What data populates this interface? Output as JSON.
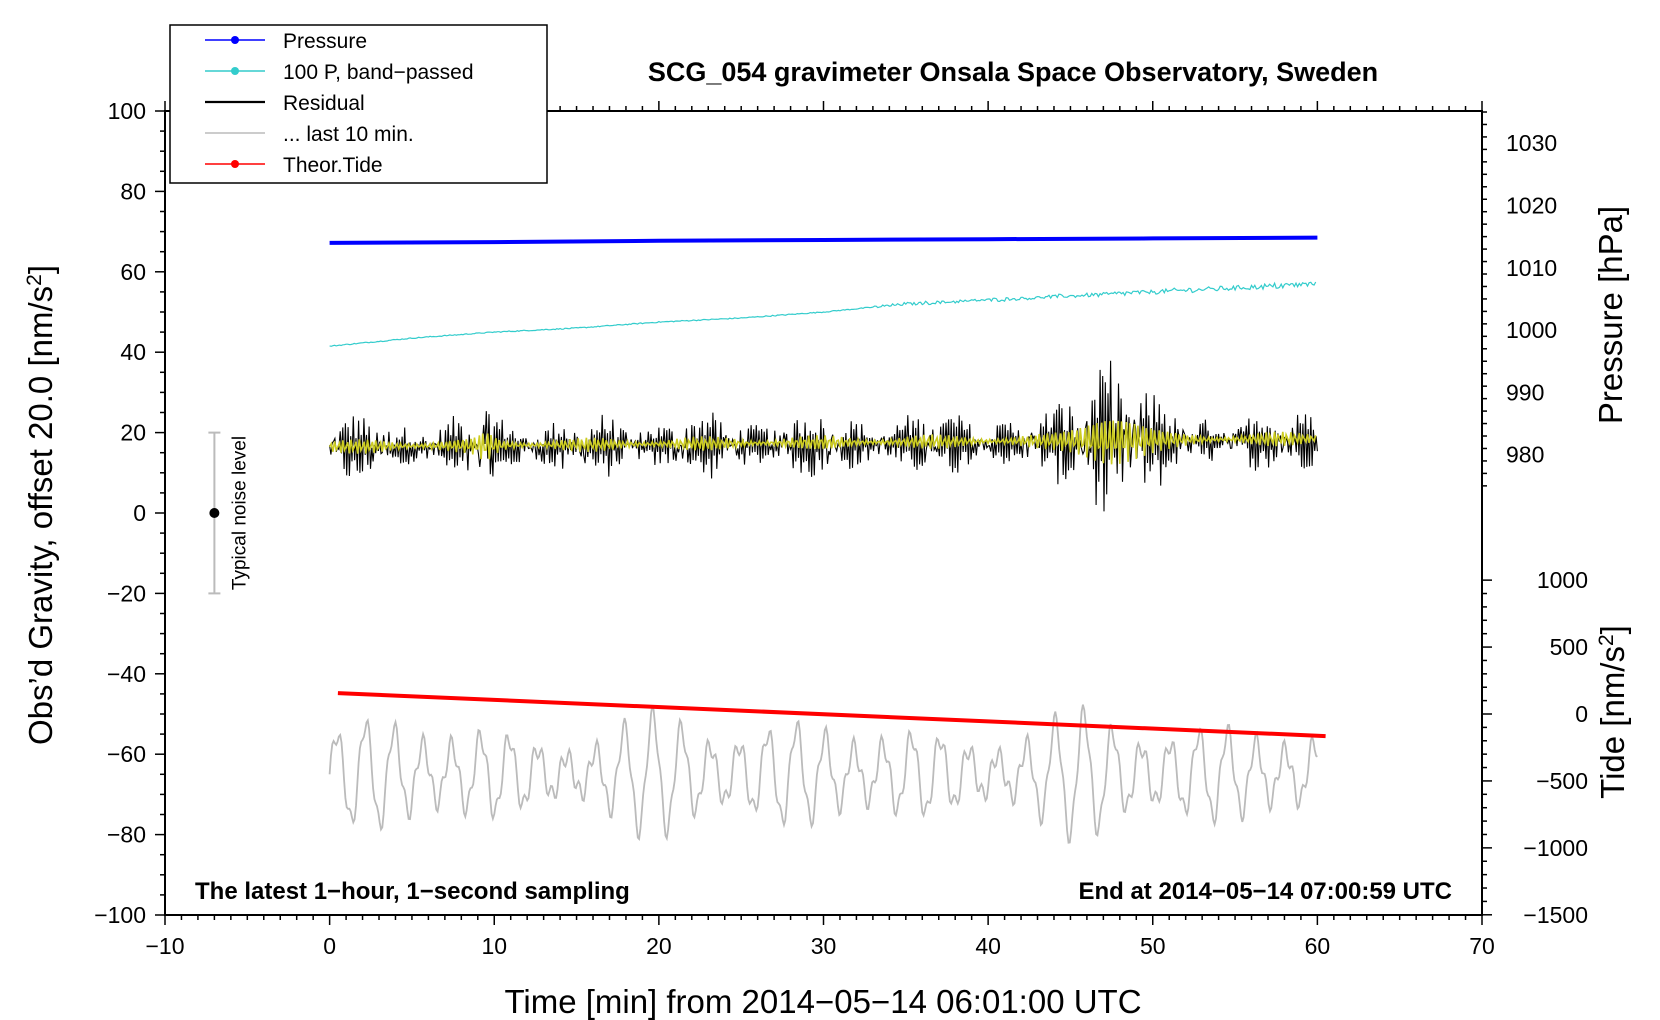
{
  "chart_data": {
    "type": "line",
    "title": "SCG_054 gravimeter Onsala Space Observatory, Sweden",
    "xlabel": "Time [min] from 2014−05−14 06:01:00 UTC",
    "ylabel_left": "Obs’d Gravity, offset 20.0 [nm/s",
    "ylabel_left_sup": "2",
    "ylabel_left_end": "]",
    "ylabel_right_top": "Pressure [hPa]",
    "ylabel_right_bottom": "Tide [nm/s",
    "ylabel_right_bottom_sup": "2",
    "ylabel_right_bottom_end": "]",
    "xlim": [
      -10,
      70
    ],
    "ylim": [
      -100,
      100
    ],
    "x_ticks": [
      "−10",
      "0",
      "10",
      "20",
      "30",
      "40",
      "50",
      "60",
      "70"
    ],
    "x_tick_values": [
      -10,
      0,
      10,
      20,
      30,
      40,
      50,
      60,
      70
    ],
    "y_ticks": [
      "100",
      "80",
      "60",
      "40",
      "20",
      "0",
      "−20",
      "−40",
      "−60",
      "−80",
      "−100"
    ],
    "y_tick_values": [
      100,
      80,
      60,
      40,
      20,
      0,
      -20,
      -40,
      -60,
      -80,
      -100
    ],
    "pressure_axis": {
      "ticks": [
        "1030",
        "1020",
        "1010",
        "1000",
        "990",
        "980"
      ],
      "values": [
        1030,
        1020,
        1010,
        1000,
        990,
        980
      ],
      "ref_gravity_at_1000": 45.5,
      "gravity_per_hpa": 1.55
    },
    "tide_axis": {
      "ticks": [
        "1000",
        "500",
        "0",
        "−500",
        "−1000",
        "−1500"
      ],
      "values": [
        1000,
        500,
        0,
        -500,
        -1000,
        -1500
      ],
      "ref_gravity_at_0": -50,
      "gravity_per_unit": 0.0333
    },
    "legend": [
      {
        "label": "Pressure",
        "color": "#0000ff",
        "marker": true
      },
      {
        "label": "100 P, band−passed",
        "color": "#33cccc",
        "marker": true
      },
      {
        "label": "Residual",
        "color": "#000000",
        "marker": false
      },
      {
        "label": "... last 10 min.",
        "color": "#bbbbbb",
        "marker": false
      },
      {
        "label": "Theor.Tide",
        "color": "#ff0000",
        "marker": true
      }
    ],
    "series": [
      {
        "name": "Pressure",
        "color": "#0000ff",
        "x": [
          0,
          10,
          20,
          30,
          40,
          50,
          60
        ],
        "y": [
          67.2,
          67.4,
          67.7,
          67.9,
          68.1,
          68.3,
          68.5
        ]
      },
      {
        "name": "100 P, band−passed",
        "color": "#33cccc",
        "x": [
          0,
          5,
          10,
          15,
          20,
          25,
          30,
          35,
          40,
          45,
          50,
          55,
          60
        ],
        "y": [
          41.5,
          43.5,
          45.0,
          46.0,
          47.5,
          48.5,
          50.0,
          52.0,
          53.0,
          54.0,
          55.0,
          56.0,
          57.0
        ]
      },
      {
        "name": "Residual",
        "color": "#000000",
        "x": [
          0,
          60
        ],
        "y": [
          16,
          18
        ]
      },
      {
        "name": "... last 10 min.",
        "color": "#bbbbbb",
        "x": [
          0,
          60
        ],
        "y": [
          -65,
          -65
        ]
      },
      {
        "name": "Theor.Tide",
        "color": "#ff0000",
        "x": [
          0.5,
          60.5
        ],
        "y": [
          -44.8,
          -55.5
        ]
      }
    ],
    "noise_bar": {
      "label": "Typical noise level",
      "x": -7,
      "center": 0,
      "half_range": 20
    },
    "annotations": [
      "The latest 1−hour, 1−second sampling",
      "End at 2014−05−14 07:00:59 UTC"
    ]
  },
  "colors": {
    "pressure": "#0000ff",
    "bandpassed": "#33cccc",
    "residual": "#000000",
    "filtered": "#cccc22",
    "last10": "#bbbbbb",
    "tide": "#ff0000"
  }
}
